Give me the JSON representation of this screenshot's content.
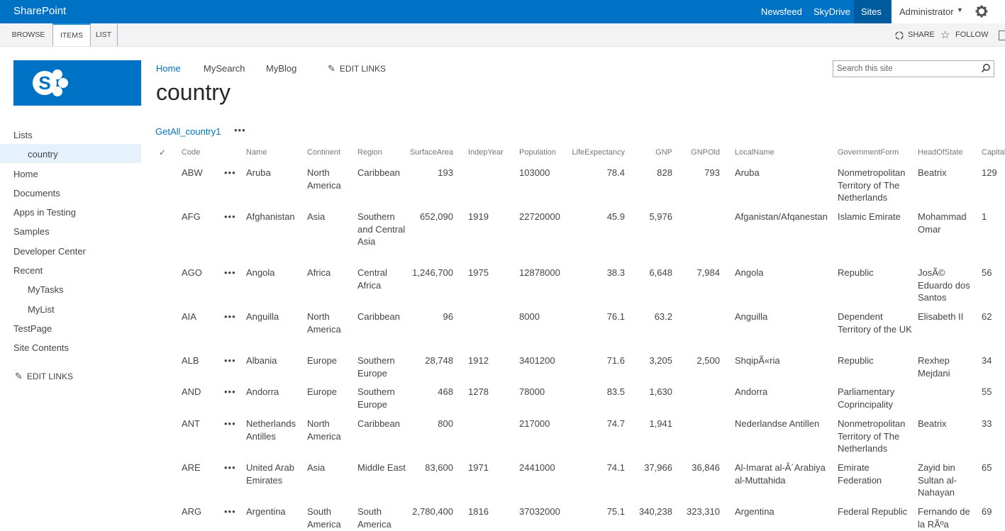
{
  "suitebar": {
    "brand": "SharePoint",
    "links": [
      "Newsfeed",
      "SkyDrive",
      "Sites"
    ],
    "user": "Administrator"
  },
  "ribbon": {
    "tabs": [
      "BROWSE",
      "ITEMS",
      "LIST"
    ],
    "actions": [
      "SHARE",
      "FOLLOW"
    ]
  },
  "topnav": {
    "items": [
      "Home",
      "MySearch",
      "MyBlog"
    ],
    "edit_links": "EDIT LINKS"
  },
  "page_title": "country",
  "search": {
    "placeholder": "Search this site"
  },
  "leftnav": {
    "items": [
      "Lists",
      "country",
      "Home",
      "Documents",
      "Apps in Testing",
      "Samples",
      "Developer Center",
      "Recent",
      "MyTasks",
      "MyList",
      "TestPage",
      "Site Contents"
    ],
    "edit_links": "EDIT LINKS"
  },
  "view": {
    "name": "GetAll_country1",
    "more": "•••"
  },
  "table": {
    "headers": [
      "Code",
      "Name",
      "Continent",
      "Region",
      "SurfaceArea",
      "IndepYear",
      "Population",
      "LifeExpectancy",
      "GNP",
      "GNPOld",
      "LocalName",
      "GovernmentForm",
      "HeadOfState",
      "Capital"
    ],
    "rows": [
      {
        "Code": "ABW",
        "Name": "Aruba",
        "Continent": "North America",
        "Region": "Caribbean",
        "SurfaceArea": "193",
        "IndepYear": "",
        "Population": "103000",
        "LifeExpectancy": "78.4",
        "GNP": "828",
        "GNPOld": "793",
        "LocalName": "Aruba",
        "GovernmentForm": "Nonmetropolitan Territory of The Netherlands",
        "HeadOfState": "Beatrix",
        "Capital": "129"
      },
      {
        "Code": "AFG",
        "Name": "Afghanistan",
        "Continent": "Asia",
        "Region": "Southern and Central Asia",
        "SurfaceArea": "652,090",
        "IndepYear": "1919",
        "Population": "22720000",
        "LifeExpectancy": "45.9",
        "GNP": "5,976",
        "GNPOld": "",
        "LocalName": "Afganistan/Afqanestan",
        "GovernmentForm": "Islamic Emirate",
        "HeadOfState": "Mohammad Omar",
        "Capital": "1"
      },
      {
        "Code": "AGO",
        "Name": "Angola",
        "Continent": "Africa",
        "Region": "Central Africa",
        "SurfaceArea": "1,246,700",
        "IndepYear": "1975",
        "Population": "12878000",
        "LifeExpectancy": "38.3",
        "GNP": "6,648",
        "GNPOld": "7,984",
        "LocalName": "Angola",
        "GovernmentForm": "Republic",
        "HeadOfState": "JosÃ© Eduardo dos Santos",
        "Capital": "56"
      },
      {
        "Code": "AIA",
        "Name": "Anguilla",
        "Continent": "North America",
        "Region": "Caribbean",
        "SurfaceArea": "96",
        "IndepYear": "",
        "Population": "8000",
        "LifeExpectancy": "76.1",
        "GNP": "63.2",
        "GNPOld": "",
        "LocalName": "Anguilla",
        "GovernmentForm": "Dependent Territory of the UK",
        "HeadOfState": "Elisabeth II",
        "Capital": "62"
      },
      {
        "Code": "ALB",
        "Name": "Albania",
        "Continent": "Europe",
        "Region": "Southern Europe",
        "SurfaceArea": "28,748",
        "IndepYear": "1912",
        "Population": "3401200",
        "LifeExpectancy": "71.6",
        "GNP": "3,205",
        "GNPOld": "2,500",
        "LocalName": "ShqipÃ«ria",
        "GovernmentForm": "Republic",
        "HeadOfState": "Rexhep Mejdani",
        "Capital": "34"
      },
      {
        "Code": "AND",
        "Name": "Andorra",
        "Continent": "Europe",
        "Region": "Southern Europe",
        "SurfaceArea": "468",
        "IndepYear": "1278",
        "Population": "78000",
        "LifeExpectancy": "83.5",
        "GNP": "1,630",
        "GNPOld": "",
        "LocalName": "Andorra",
        "GovernmentForm": "Parliamentary Coprincipality",
        "HeadOfState": "",
        "Capital": "55"
      },
      {
        "Code": "ANT",
        "Name": "Netherlands Antilles",
        "Continent": "North America",
        "Region": "Caribbean",
        "SurfaceArea": "800",
        "IndepYear": "",
        "Population": "217000",
        "LifeExpectancy": "74.7",
        "GNP": "1,941",
        "GNPOld": "",
        "LocalName": "Nederlandse Antillen",
        "GovernmentForm": "Nonmetropolitan Territory of The Netherlands",
        "HeadOfState": "Beatrix",
        "Capital": "33"
      },
      {
        "Code": "ARE",
        "Name": "United Arab Emirates",
        "Continent": "Asia",
        "Region": "Middle East",
        "SurfaceArea": "83,600",
        "IndepYear": "1971",
        "Population": "2441000",
        "LifeExpectancy": "74.1",
        "GNP": "37,966",
        "GNPOld": "36,846",
        "LocalName": "Al-Imarat al-Â´Arabiya al-Muttahida",
        "GovernmentForm": "Emirate Federation",
        "HeadOfState": "Zayid bin Sultan al-Nahayan",
        "Capital": "65"
      },
      {
        "Code": "ARG",
        "Name": "Argentina",
        "Continent": "South America",
        "Region": "South America",
        "SurfaceArea": "2,780,400",
        "IndepYear": "1816",
        "Population": "37032000",
        "LifeExpectancy": "75.1",
        "GNP": "340,238",
        "GNPOld": "323,310",
        "LocalName": "Argentina",
        "GovernmentForm": "Federal Republic",
        "HeadOfState": "Fernando de la RÃºa",
        "Capital": "69"
      }
    ]
  },
  "colors": {
    "brand": "#0072c6",
    "sites_tab": "#005a9e",
    "selected_nav": "#e6f2fb"
  }
}
